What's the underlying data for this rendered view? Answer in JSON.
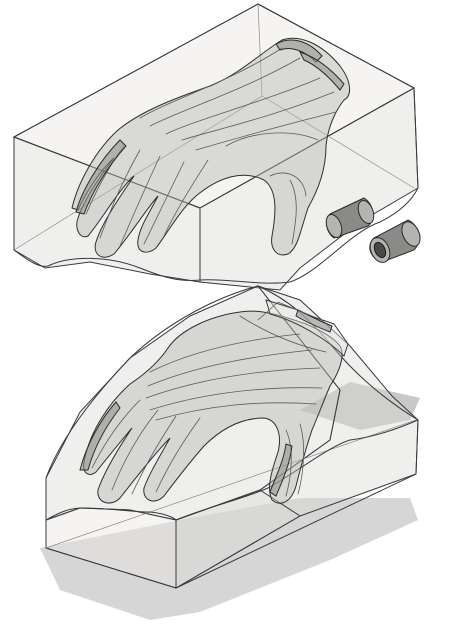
{
  "viewport": {
    "background": "#ffffff",
    "model_color": "#d9d8d6",
    "edge_color": "#3a3a3a",
    "shadow_color": "#cfcfcf",
    "pin_color": "#8a8a88"
  }
}
